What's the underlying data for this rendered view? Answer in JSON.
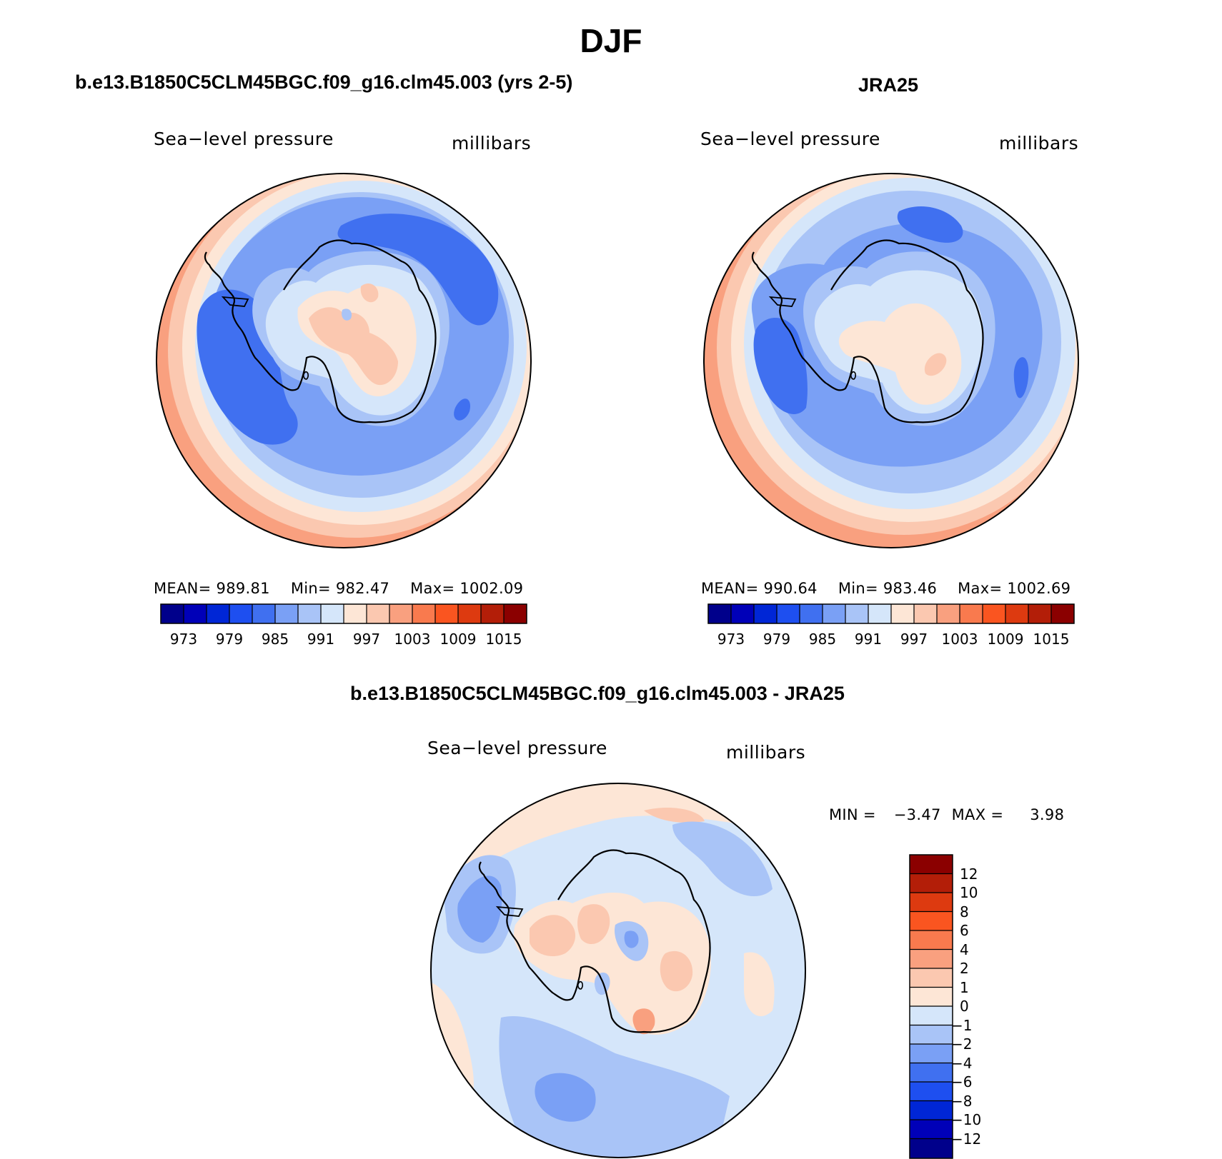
{
  "title": "DJF",
  "colors": {
    "blue6": "#00008b",
    "blue5": "#0000b8",
    "blue4": "#0026d6",
    "blue3": "#1e4ff0",
    "blue2": "#4070f0",
    "blue1": "#7aa0f5",
    "blue0": "#a9c4f7",
    "blue00": "#d5e6fa",
    "red00": "#fde6d6",
    "red0": "#fbc8b0",
    "red1": "#f9a07f",
    "red2": "#f97a4e",
    "red3": "#fa5520",
    "red4": "#dd3a10",
    "red5": "#b31e08",
    "red6": "#8b0000",
    "coastline": "#000000"
  },
  "panels": [
    {
      "case": "b.e13.B1850C5CLM45BGC.f09_g16.clm45.003 (yrs 2-5)",
      "variable": "Sea−level pressure",
      "units": "millibars",
      "stats": {
        "mean_label": "MEAN=",
        "mean": "989.81",
        "min_label": "Min=",
        "min": "982.47",
        "max_label": "Max=",
        "max": "1002.09"
      },
      "colorbar_ticks": [
        "973",
        "979",
        "985",
        "991",
        "997",
        "1003",
        "1009",
        "1015"
      ]
    },
    {
      "case": "JRA25",
      "variable": "Sea−level pressure",
      "units": "millibars",
      "stats": {
        "mean_label": "MEAN=",
        "mean": "990.64",
        "min_label": "Min=",
        "min": "983.46",
        "max_label": "Max=",
        "max": "1002.69"
      },
      "colorbar_ticks": [
        "973",
        "979",
        "985",
        "991",
        "997",
        "1003",
        "1009",
        "1015"
      ]
    }
  ],
  "difference": {
    "case": "b.e13.B1850C5CLM45BGC.f09_g16.clm45.003 - JRA25",
    "variable": "Sea−level pressure",
    "units": "millibars",
    "min_label": "MIN =",
    "min": "−3.47",
    "max_label": "MAX =",
    "max": "3.98",
    "colorbar_ticks": [
      "12",
      "10",
      "8",
      "6",
      "4",
      "2",
      "1",
      "0",
      "−1",
      "−2",
      "−4",
      "−6",
      "−8",
      "−10",
      "−12"
    ]
  }
}
